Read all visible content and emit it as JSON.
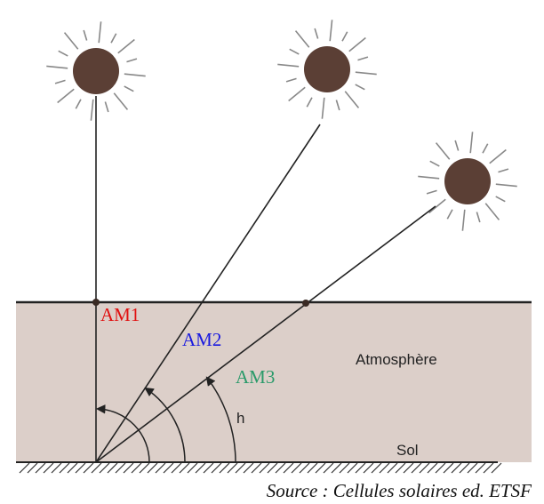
{
  "labels": {
    "am1": "AM1",
    "am2": "AM2",
    "am3": "AM3",
    "atmosphere": "Atmosphère",
    "angle": "h",
    "ground": "Sol"
  },
  "source": "Source : Cellules solaires ed. ETSF"
}
